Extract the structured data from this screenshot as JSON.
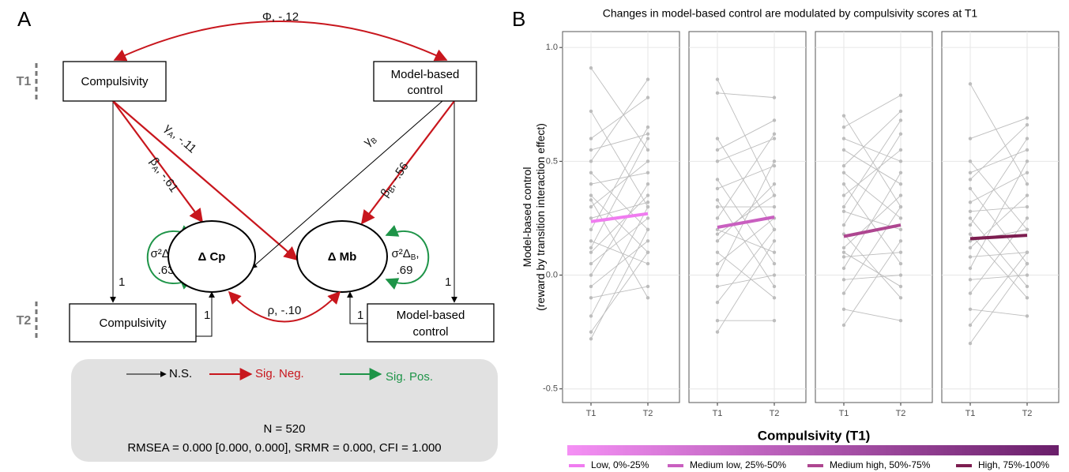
{
  "panel_a": {
    "label": "A",
    "times": [
      "T1",
      "T2"
    ],
    "nodes": {
      "comp_t1": "Compulsivity",
      "mbc_t1": [
        "Model-based",
        "control"
      ],
      "d_cp": "Δ Cp",
      "d_mb": "Δ Mb",
      "comp_t2": "Compulsivity",
      "mbc_t2": [
        "Model-based",
        "control"
      ]
    },
    "paths": {
      "phi": "Φ, -.12",
      "gamma_a": {
        "symbol": "γ",
        "sub": "A",
        "rest": ", -.11"
      },
      "beta_a": {
        "symbol": "β",
        "sub": "A",
        "rest": ", -.61"
      },
      "gamma_b": {
        "symbol": "γ",
        "sub": "B",
        "rest": ""
      },
      "beta_b": {
        "symbol": "β",
        "sub": "B",
        "rest": ", -.56"
      },
      "var_a": {
        "symbol": "σ²Δ",
        "sub": "A",
        "rest": ",",
        "value": ".63"
      },
      "var_b": {
        "symbol": "σ²Δ",
        "sub": "B",
        "rest": ",",
        "value": ".69"
      },
      "rho": "ρ, -.10",
      "ones": [
        "1",
        "1",
        "1",
        "1"
      ]
    },
    "legend": [
      "N.S.",
      "Sig. Neg.",
      "Sig. Pos."
    ],
    "fit": [
      "N = 520",
      "RMSEA = 0.000 [0.000, 0.000], SRMR = 0.000, CFI = 1.000"
    ]
  },
  "chart_data": {
    "type": "line",
    "panel_label": "B",
    "title": "Changes in model-based control are modulated by compulsivity scores at T1",
    "ylabel": [
      "Model-based control",
      "(reward by transition interaction effect)"
    ],
    "categories": [
      "T1",
      "T2"
    ],
    "ylim": [
      -0.56,
      1.07
    ],
    "yticks": [
      -0.5,
      {
        "value": 0,
        "label": "0.0"
      },
      0.5,
      {
        "value": 1,
        "label": "1.0"
      }
    ],
    "grid": true,
    "subject_color": "#bdbdbd",
    "legend_title": "Compulsivity (T1)",
    "colorbar": [
      "#f590f5",
      "#6a1f6a"
    ],
    "series": [
      {
        "name": "Low, 0%-25%",
        "color": "#f07cf0",
        "values": [
          0.235,
          0.27
        ],
        "subjects": [
          [
            0.91,
            0.55
          ],
          [
            0.72,
            0.3
          ],
          [
            0.55,
            0.62
          ],
          [
            0.5,
            0.86
          ],
          [
            0.45,
            0.2
          ],
          [
            0.4,
            0.45
          ],
          [
            0.35,
            0.1
          ],
          [
            0.3,
            0.5
          ],
          [
            0.25,
            0.32
          ],
          [
            0.2,
            0.65
          ],
          [
            0.15,
            0.05
          ],
          [
            0.1,
            0.35
          ],
          [
            0.05,
            0.25
          ],
          [
            0,
            0.4
          ],
          [
            -0.05,
            0.15
          ],
          [
            -0.1,
            -0.05
          ],
          [
            -0.18,
            0.3
          ],
          [
            -0.25,
            0.1
          ],
          [
            -0.28,
            0.2
          ],
          [
            0.6,
            0.78
          ],
          [
            0.33,
            -0.1
          ],
          [
            0.12,
            0.6
          ]
        ]
      },
      {
        "name": "Medium low, 25%-50%",
        "color": "#c95fc0",
        "values": [
          0.21,
          0.255
        ],
        "subjects": [
          [
            0.86,
            0.35
          ],
          [
            0.8,
            0.78
          ],
          [
            0.6,
            0.2
          ],
          [
            0.5,
            0.6
          ],
          [
            0.42,
            0.05
          ],
          [
            0.38,
            0.48
          ],
          [
            0.3,
            0.3
          ],
          [
            0.25,
            0.62
          ],
          [
            0.2,
            0.1
          ],
          [
            0.15,
            0.4
          ],
          [
            0.1,
            -0.1
          ],
          [
            0.05,
            0.25
          ],
          [
            0,
            0.5
          ],
          [
            -0.05,
            0
          ],
          [
            -0.12,
            0.2
          ],
          [
            -0.2,
            -0.2
          ],
          [
            -0.25,
            0.15
          ],
          [
            0.55,
            0.68
          ],
          [
            0.33,
            -0.05
          ],
          [
            0.18,
            0.35
          ]
        ]
      },
      {
        "name": "Medium high, 50%-75%",
        "color": "#ae4690",
        "values": [
          0.17,
          0.22
        ],
        "subjects": [
          [
            0.7,
            0.3
          ],
          [
            0.65,
            0.79
          ],
          [
            0.55,
            0.4
          ],
          [
            0.48,
            0.72
          ],
          [
            0.4,
            0.05
          ],
          [
            0.35,
            0.55
          ],
          [
            0.28,
            0.2
          ],
          [
            0.22,
            0.62
          ],
          [
            0.18,
            -0.1
          ],
          [
            0.12,
            0.35
          ],
          [
            0.08,
            0.1
          ],
          [
            0.03,
            0.45
          ],
          [
            -0.02,
            0
          ],
          [
            -0.08,
            0.3
          ],
          [
            -0.15,
            -0.2
          ],
          [
            -0.22,
            0.15
          ],
          [
            0.45,
            0.25
          ],
          [
            0.3,
            0.68
          ],
          [
            0.1,
            -0.05
          ],
          [
            0.6,
            0.5
          ]
        ]
      },
      {
        "name": "High, 75%-100%",
        "color": "#7d1d50",
        "values": [
          0.16,
          0.175
        ],
        "subjects": [
          [
            0.84,
            0.4
          ],
          [
            0.6,
            0.69
          ],
          [
            0.5,
            0.2
          ],
          [
            0.45,
            0.55
          ],
          [
            0.38,
            0.05
          ],
          [
            0.32,
            0.45
          ],
          [
            0.28,
            0.3
          ],
          [
            0.22,
            0.6
          ],
          [
            0.18,
            -0.1
          ],
          [
            0.12,
            0.35
          ],
          [
            0.08,
            0.1
          ],
          [
            0.03,
            0.5
          ],
          [
            -0.02,
            0
          ],
          [
            -0.08,
            0.25
          ],
          [
            -0.15,
            -0.18
          ],
          [
            -0.22,
            0.1
          ],
          [
            -0.3,
            0.05
          ],
          [
            0.42,
            0.66
          ],
          [
            0.25,
            -0.05
          ],
          [
            0.15,
            0.2
          ]
        ]
      }
    ]
  }
}
